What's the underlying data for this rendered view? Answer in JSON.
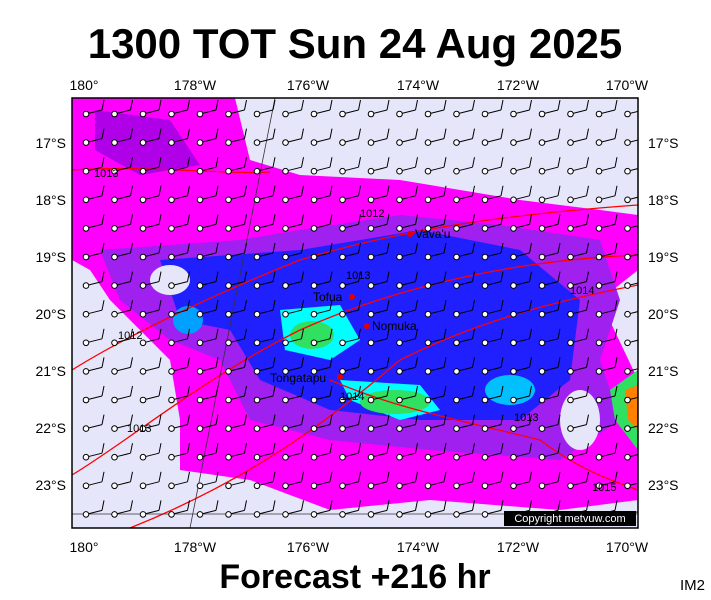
{
  "title": "1300 TOT Sun 24 Aug 2025",
  "lon_labels": [
    "180°",
    "178°W",
    "176°W",
    "174°W",
    "172°W",
    "170°W"
  ],
  "lat_labels": [
    "17°S",
    "18°S",
    "19°S",
    "20°S",
    "21°S",
    "22°S",
    "23°S"
  ],
  "places": [
    "Vava'u",
    "Tofua",
    "Nomuka",
    "Tongatapu"
  ],
  "isobar_labels": [
    "1013",
    "1012",
    "1013",
    "1014",
    "1012",
    "1014",
    "1013",
    "1013",
    "1015"
  ],
  "copyright": "Copyright metvuw.com",
  "footer": "Forecast +216 hr",
  "corner": "IM2"
}
